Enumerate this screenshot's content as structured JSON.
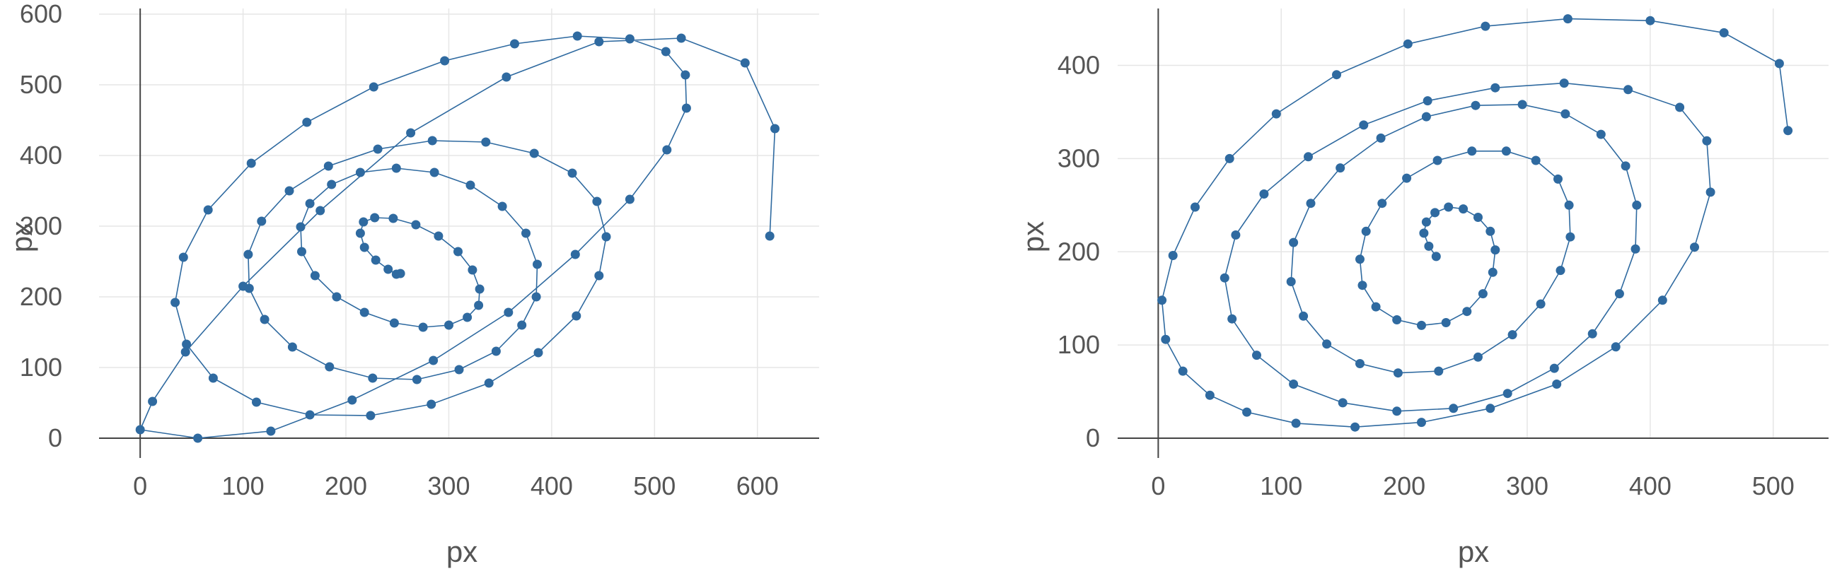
{
  "chart_data": [
    {
      "type": "scatter",
      "mode": "lines+markers",
      "xlabel": "px",
      "ylabel": "px",
      "xlim": [
        -40,
        660
      ],
      "ylim": [
        0,
        600
      ],
      "xticks": [
        0,
        100,
        200,
        300,
        400,
        500,
        600
      ],
      "yticks": [
        0,
        100,
        200,
        300,
        400,
        500,
        600
      ],
      "xtick_labels": [
        "0",
        "100",
        "200",
        "300",
        "400",
        "500",
        "600"
      ],
      "ytick_labels": [
        "0",
        "100",
        "200",
        "300",
        "400",
        "500",
        "600"
      ],
      "grid": true,
      "color": "#2f6aa0",
      "series": [
        {
          "x": [
            253,
            249,
            241,
            229,
            218,
            214,
            217,
            228,
            246,
            268,
            290,
            309,
            323,
            330,
            329,
            318,
            300,
            275,
            247,
            218,
            191,
            170,
            157,
            156,
            165,
            186,
            214,
            249,
            286,
            321,
            352,
            375,
            386,
            385,
            371,
            346,
            310,
            269,
            226,
            184,
            148,
            121,
            106,
            105,
            118,
            145,
            183,
            231,
            284,
            336,
            383,
            420,
            444,
            453,
            446,
            424,
            387,
            339,
            283,
            224,
            165,
            113,
            71,
            45,
            34,
            42,
            66,
            108,
            162,
            227,
            296,
            364,
            425,
            476,
            511,
            530,
            531,
            512,
            476,
            423,
            358,
            285,
            206,
            127,
            56,
            0,
            12,
            44,
            100,
            175,
            263,
            356,
            446,
            526,
            588,
            617,
            612
          ],
          "y": [
            233,
            232,
            239,
            252,
            270,
            290,
            306,
            312,
            311,
            302,
            286,
            264,
            238,
            211,
            188,
            171,
            160,
            157,
            163,
            178,
            200,
            230,
            264,
            299,
            332,
            359,
            376,
            382,
            376,
            358,
            328,
            290,
            246,
            200,
            160,
            123,
            97,
            83,
            85,
            101,
            129,
            168,
            212,
            260,
            307,
            350,
            385,
            409,
            421,
            419,
            403,
            375,
            335,
            285,
            230,
            173,
            121,
            78,
            48,
            32,
            33,
            51,
            85,
            133,
            192,
            256,
            323,
            389,
            447,
            497,
            534,
            558,
            569,
            565,
            547,
            514,
            467,
            408,
            338,
            260,
            178,
            110,
            54,
            10,
            0,
            12,
            52,
            122,
            215,
            322,
            432,
            511,
            561,
            566,
            531,
            438,
            286
          ]
        }
      ]
    },
    {
      "type": "scatter",
      "mode": "lines+markers",
      "xlabel": "px",
      "ylabel": "px",
      "xlim": [
        -33,
        545
      ],
      "ylim": [
        0,
        455
      ],
      "xticks": [
        0,
        100,
        200,
        300,
        400,
        500
      ],
      "yticks": [
        0,
        100,
        200,
        300,
        400
      ],
      "xtick_labels": [
        "0",
        "100",
        "200",
        "300",
        "400",
        "500"
      ],
      "ytick_labels": [
        "0",
        "100",
        "200",
        "300",
        "400"
      ],
      "grid": true,
      "color": "#2f6aa0",
      "series": [
        {
          "x": [
            226,
            220,
            216,
            218,
            225,
            236,
            248,
            260,
            270,
            274,
            272,
            264,
            251,
            234,
            214,
            194,
            177,
            166,
            164,
            169,
            182,
            202,
            227,
            255,
            283,
            307,
            325,
            334,
            335,
            327,
            311,
            288,
            260,
            228,
            195,
            164,
            137,
            118,
            108,
            110,
            124,
            148,
            181,
            218,
            258,
            296,
            331,
            360,
            380,
            389,
            388,
            375,
            353,
            322,
            284,
            240,
            194,
            150,
            110,
            80,
            60,
            54,
            63,
            86,
            122,
            167,
            219,
            274,
            330,
            382,
            424,
            446,
            449,
            436,
            410,
            372,
            324,
            270,
            214,
            160,
            112,
            72,
            42,
            20,
            6,
            3,
            12,
            30,
            58,
            96,
            145,
            203,
            266,
            333,
            400,
            460,
            505,
            512
          ],
          "y": [
            195,
            206,
            220,
            232,
            242,
            248,
            246,
            237,
            222,
            202,
            178,
            155,
            136,
            124,
            121,
            127,
            141,
            164,
            192,
            222,
            252,
            279,
            298,
            308,
            308,
            298,
            278,
            250,
            216,
            180,
            144,
            111,
            87,
            72,
            70,
            80,
            101,
            131,
            168,
            210,
            252,
            290,
            322,
            345,
            357,
            358,
            348,
            326,
            292,
            250,
            203,
            155,
            112,
            75,
            48,
            32,
            29,
            38,
            58,
            89,
            128,
            172,
            218,
            262,
            302,
            336,
            362,
            376,
            381,
            374,
            355,
            319,
            264,
            205,
            148,
            98,
            58,
            32,
            17,
            12,
            16,
            28,
            46,
            72,
            106,
            148,
            196,
            248,
            300,
            348,
            390,
            423,
            442,
            450,
            448,
            435,
            402,
            330
          ]
        }
      ]
    }
  ]
}
